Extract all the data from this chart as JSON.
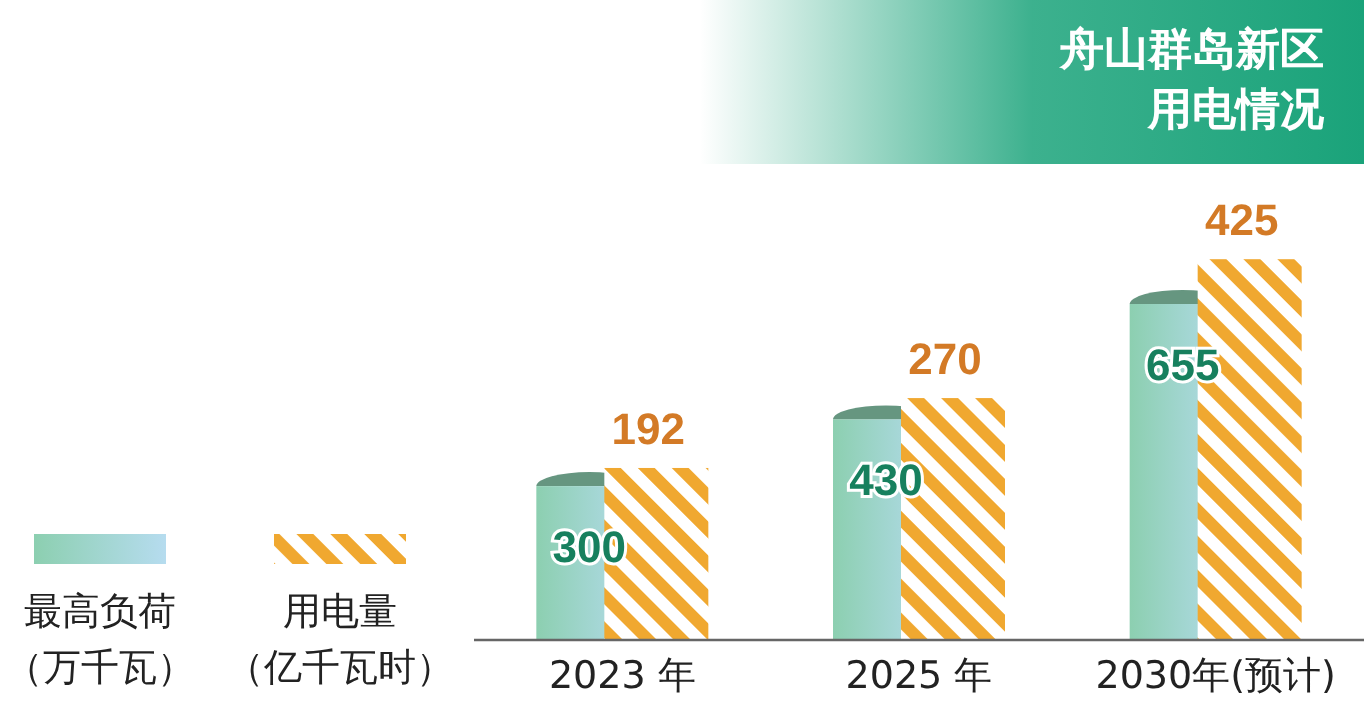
{
  "chart_data": {
    "type": "bar",
    "title": "舟山群岛新区用电情况",
    "categories": [
      "2023 年",
      "2025 年",
      "2030年(预计)"
    ],
    "series": [
      {
        "name": "最高负荷（万千瓦）",
        "color": "#8ccfb0",
        "values": [
          300,
          430,
          655
        ]
      },
      {
        "name": "用电量（亿千瓦时）",
        "color": "#f0a830",
        "values": [
          192,
          270,
          425
        ],
        "axis": "y2"
      }
    ],
    "tick_labels": "x",
    "data_labels": true,
    "legend": "bottom left"
  }
}
